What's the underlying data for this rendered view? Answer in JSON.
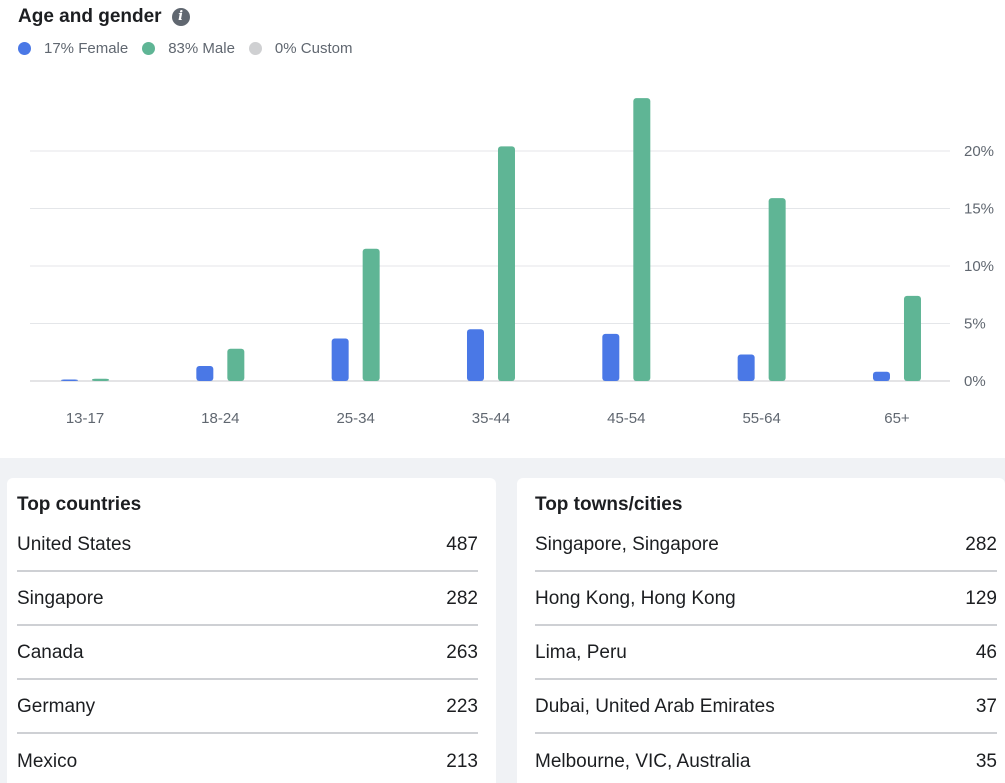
{
  "age_gender": {
    "title": "Age and gender",
    "info_icon": "info-icon",
    "legend": [
      {
        "label": "17% Female",
        "color": "#4a78e6"
      },
      {
        "label": "83% Male",
        "color": "#5fb595"
      },
      {
        "label": "0% Custom",
        "color": "#cfd0d2"
      }
    ]
  },
  "chart_data": {
    "type": "bar",
    "categories": [
      "13-17",
      "18-24",
      "25-34",
      "35-44",
      "45-54",
      "55-64",
      "65+"
    ],
    "series": [
      {
        "name": "Female",
        "color": "#4a78e6",
        "values": [
          0.1,
          1.3,
          3.7,
          4.5,
          4.1,
          2.3,
          0.8
        ]
      },
      {
        "name": "Male",
        "color": "#5fb595",
        "values": [
          0.2,
          2.8,
          11.5,
          20.4,
          24.6,
          15.9,
          7.4
        ]
      }
    ],
    "y_ticks": [
      0,
      5,
      10,
      15,
      20
    ],
    "y_tick_labels": [
      "0%",
      "5%",
      "10%",
      "15%",
      "20%"
    ],
    "ylim": [
      0,
      25
    ],
    "grid": true,
    "y_axis_side": "right"
  },
  "top_countries": {
    "title": "Top countries",
    "rows": [
      {
        "name": "United States",
        "value": "487"
      },
      {
        "name": "Singapore",
        "value": "282"
      },
      {
        "name": "Canada",
        "value": "263"
      },
      {
        "name": "Germany",
        "value": "223"
      },
      {
        "name": "Mexico",
        "value": "213"
      }
    ]
  },
  "top_cities": {
    "title": "Top towns/cities",
    "rows": [
      {
        "name": "Singapore, Singapore",
        "value": "282"
      },
      {
        "name": "Hong Kong, Hong Kong",
        "value": "129"
      },
      {
        "name": "Lima, Peru",
        "value": "46"
      },
      {
        "name": "Dubai, United Arab Emirates",
        "value": "37"
      },
      {
        "name": "Melbourne, VIC, Australia",
        "value": "35"
      }
    ]
  }
}
